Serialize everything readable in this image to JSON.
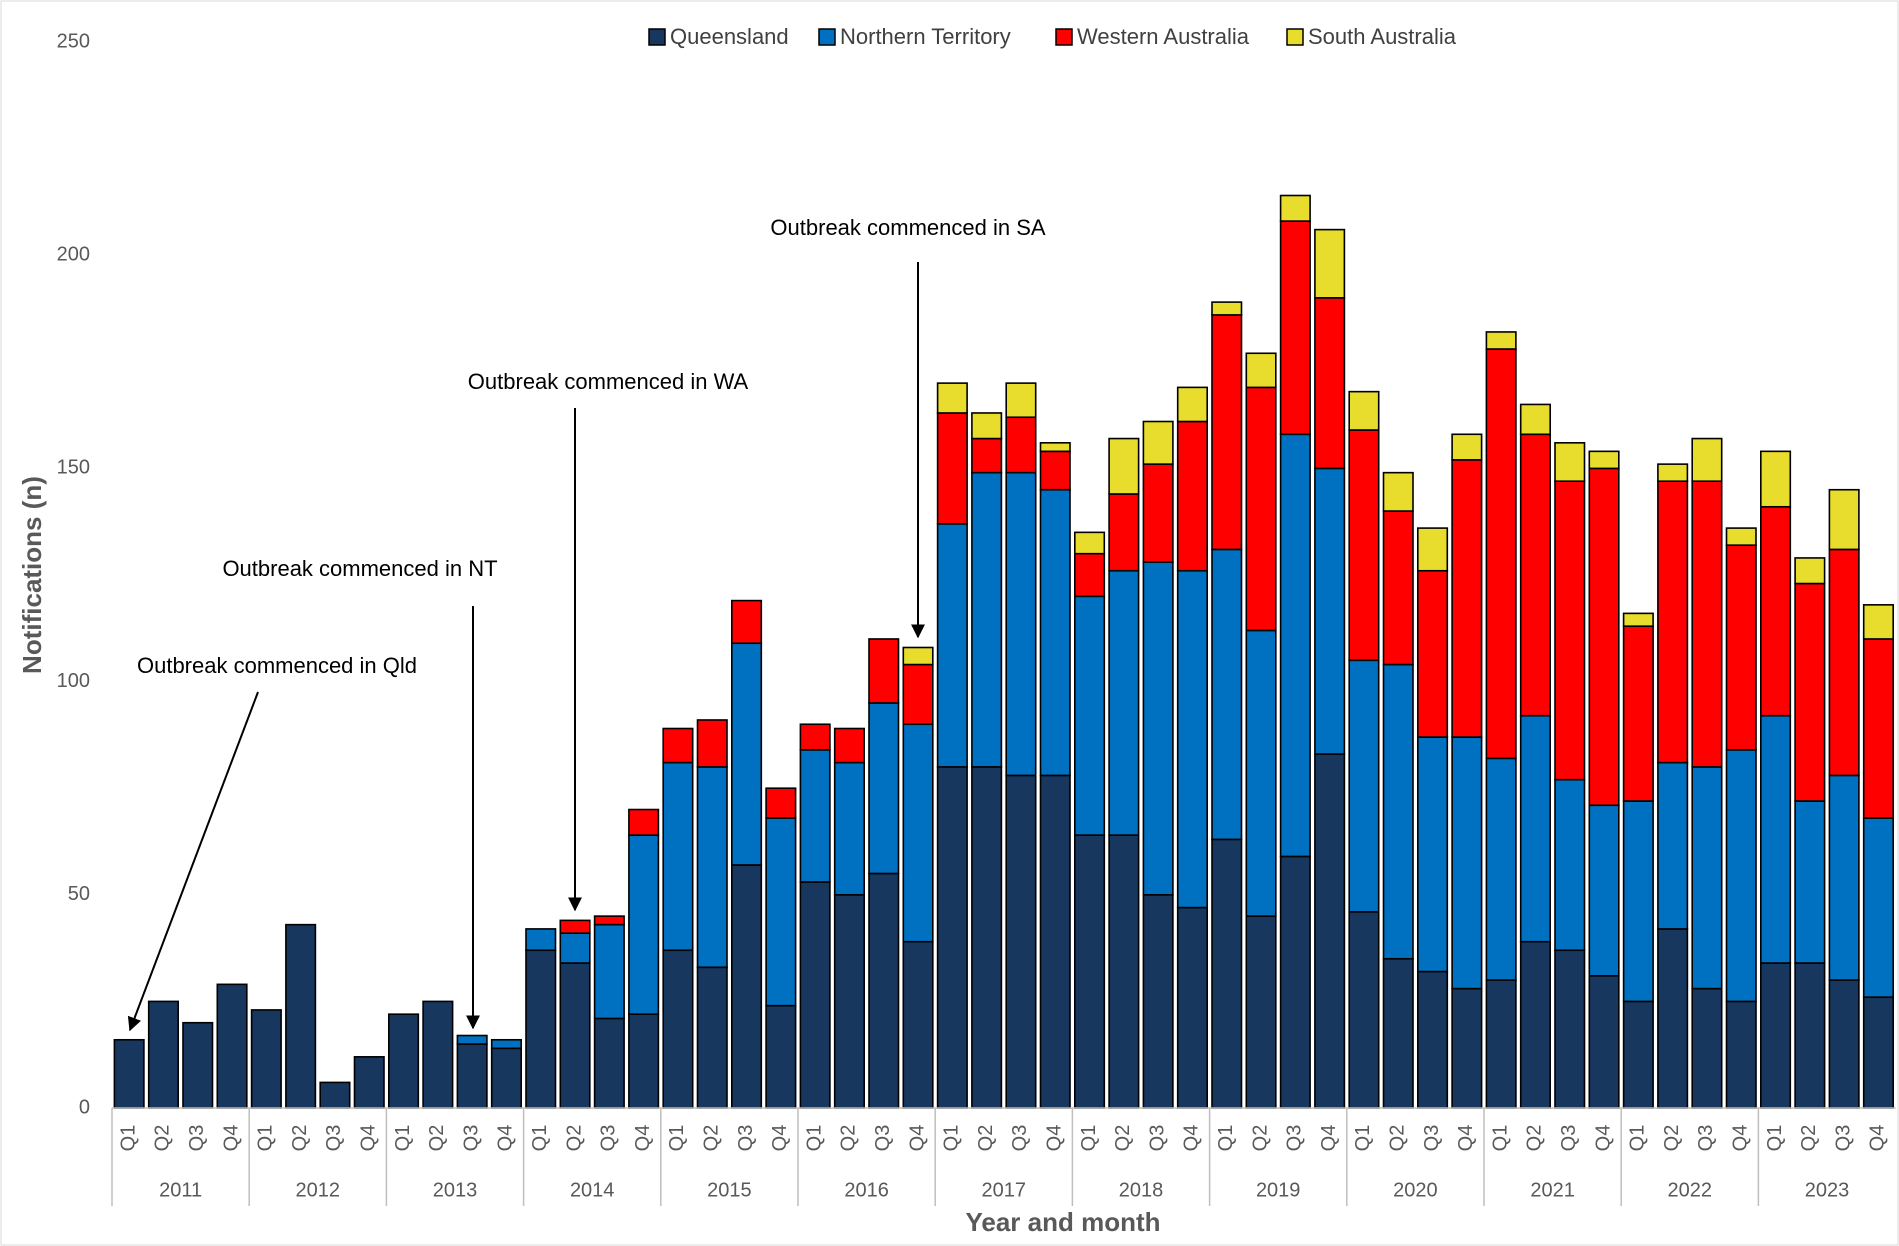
{
  "chart_data": {
    "type": "bar",
    "stacked": true,
    "x_label": "Year and month",
    "y_label": "Notifications (n)",
    "categories": [
      "Q1",
      "Q2",
      "Q3",
      "Q4",
      "Q1",
      "Q2",
      "Q3",
      "Q4",
      "Q1",
      "Q2",
      "Q3",
      "Q4",
      "Q1",
      "Q2",
      "Q3",
      "Q4",
      "Q1",
      "Q2",
      "Q3",
      "Q4",
      "Q1",
      "Q2",
      "Q3",
      "Q4",
      "Q1",
      "Q2",
      "Q3",
      "Q4",
      "Q1",
      "Q2",
      "Q3",
      "Q4",
      "Q1",
      "Q2",
      "Q3",
      "Q4",
      "Q1",
      "Q2",
      "Q3",
      "Q4",
      "Q1",
      "Q2",
      "Q3",
      "Q4",
      "Q1",
      "Q2",
      "Q3",
      "Q4",
      "Q1",
      "Q2",
      "Q3",
      "Q4"
    ],
    "groups": [
      "2011",
      "2012",
      "2013",
      "2014",
      "2015",
      "2016",
      "2017",
      "2018",
      "2019",
      "2020",
      "2021",
      "2022",
      "2023"
    ],
    "series": [
      {
        "name": "Queensland",
        "color": "#17375e",
        "values": [
          16,
          25,
          20,
          29,
          23,
          43,
          6,
          12,
          22,
          25,
          15,
          14,
          37,
          34,
          21,
          22,
          37,
          33,
          57,
          24,
          53,
          50,
          55,
          39,
          80,
          80,
          78,
          78,
          64,
          64,
          50,
          47,
          63,
          45,
          59,
          83,
          46,
          35,
          32,
          28,
          30,
          39,
          37,
          31,
          25,
          42,
          28,
          25,
          34,
          34,
          30,
          26
        ]
      },
      {
        "name": "Northern Territory",
        "color": "#0070c0",
        "values": [
          0,
          0,
          0,
          0,
          0,
          0,
          0,
          0,
          0,
          0,
          2,
          2,
          5,
          7,
          22,
          42,
          44,
          47,
          52,
          44,
          31,
          31,
          40,
          51,
          57,
          69,
          71,
          67,
          56,
          62,
          78,
          79,
          68,
          67,
          99,
          67,
          59,
          69,
          55,
          59,
          52,
          53,
          40,
          40,
          47,
          39,
          52,
          59,
          58,
          38,
          48,
          42
        ]
      },
      {
        "name": "Western Australia",
        "color": "#ff0000",
        "values": [
          0,
          0,
          0,
          0,
          0,
          0,
          0,
          0,
          0,
          0,
          0,
          0,
          0,
          3,
          2,
          6,
          8,
          11,
          10,
          7,
          6,
          8,
          15,
          14,
          26,
          8,
          13,
          9,
          10,
          18,
          23,
          35,
          55,
          57,
          50,
          40,
          54,
          36,
          39,
          65,
          96,
          66,
          70,
          79,
          41,
          66,
          67,
          48,
          49,
          51,
          53,
          42
        ]
      },
      {
        "name": "South Australia",
        "color": "#e8dc2c",
        "values": [
          0,
          0,
          0,
          0,
          0,
          0,
          0,
          0,
          0,
          0,
          0,
          0,
          0,
          0,
          0,
          0,
          0,
          0,
          0,
          0,
          0,
          0,
          0,
          4,
          7,
          6,
          8,
          2,
          5,
          13,
          10,
          8,
          3,
          8,
          6,
          16,
          9,
          9,
          10,
          6,
          4,
          7,
          9,
          4,
          3,
          4,
          10,
          4,
          13,
          6,
          14,
          8
        ]
      }
    ],
    "ylim": [
      0,
      250
    ],
    "yticks": [
      0,
      50,
      100,
      150,
      200,
      250
    ],
    "grid": false,
    "legend": "top",
    "annotations": [
      "Outbreak commenced in Qld",
      "Outbreak commenced in NT",
      "Outbreak commenced in WA",
      "Outbreak commenced in SA"
    ]
  }
}
